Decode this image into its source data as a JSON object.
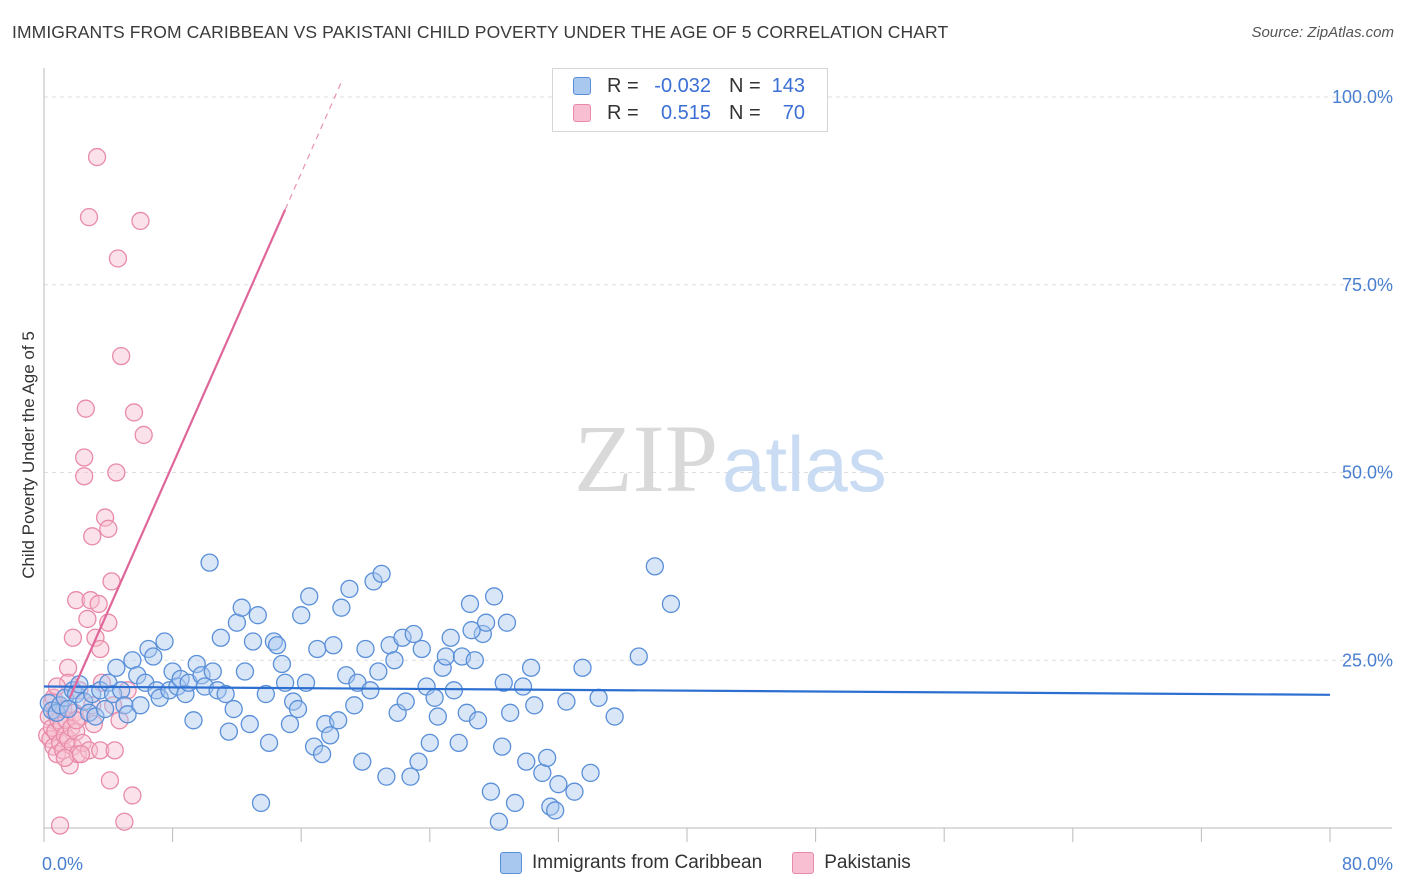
{
  "header": {
    "title": "IMMIGRANTS FROM CARIBBEAN VS PAKISTANI CHILD POVERTY UNDER THE AGE OF 5 CORRELATION CHART",
    "source": "Source: ZipAtlas.com"
  },
  "legend": {
    "series": [
      {
        "r_label": "R =",
        "r_value": "-0.032",
        "n_label": "N =",
        "n_value": "143"
      },
      {
        "r_label": "R =",
        "r_value": "0.515",
        "n_label": "N =",
        "n_value": "70"
      }
    ]
  },
  "bottom_legend": {
    "caribbean": "Immigrants from Caribbean",
    "pakistanis": "Pakistanis"
  },
  "colors": {
    "blue_fill": "#a9c8f0",
    "blue_stroke": "#5a8fd8",
    "blue_line": "#2d6fd1",
    "pink_fill": "#f7bfd1",
    "pink_stroke": "#e88aa8",
    "pink_line": "#e0669a",
    "grid": "#dddddd",
    "tick_label": "#4a7fd0"
  },
  "chart_data": {
    "type": "scatter",
    "title": "IMMIGRANTS FROM CARIBBEAN VS PAKISTANI CHILD POVERTY UNDER THE AGE OF 5 CORRELATION CHART",
    "xlabel": "",
    "ylabel": "Child Poverty Under the Age of 5",
    "xlim": [
      0,
      80
    ],
    "ylim": [
      0,
      102
    ],
    "x_tick_labels": [
      {
        "value": 0,
        "label": "0.0%"
      },
      {
        "value": 80,
        "label": "80.0%"
      }
    ],
    "y_tick_labels": [
      {
        "value": 25,
        "label": "25.0%"
      },
      {
        "value": 50,
        "label": "50.0%"
      },
      {
        "value": 75,
        "label": "75.0%"
      },
      {
        "value": 100,
        "label": "100.0%"
      }
    ],
    "watermark": {
      "zip": "ZIP",
      "atlas": "atlas"
    },
    "series": [
      {
        "name": "Immigrants from Caribbean",
        "R": -0.032,
        "N": 143,
        "trend": {
          "x": [
            0,
            80
          ],
          "y": [
            21.5,
            20.4
          ]
        },
        "points": [
          [
            0.3,
            19.3
          ],
          [
            0.5,
            18.3
          ],
          [
            0.8,
            18
          ],
          [
            1,
            19
          ],
          [
            1.3,
            20
          ],
          [
            1.5,
            18.5
          ],
          [
            1.8,
            21
          ],
          [
            2,
            20.5
          ],
          [
            2.2,
            21.8
          ],
          [
            2.5,
            19.5
          ],
          [
            2.8,
            18
          ],
          [
            3,
            20.5
          ],
          [
            3.2,
            17.5
          ],
          [
            3.5,
            21
          ],
          [
            3.8,
            18.5
          ],
          [
            4,
            22
          ],
          [
            4.3,
            20.5
          ],
          [
            4.5,
            24
          ],
          [
            4.8,
            21
          ],
          [
            5,
            19
          ],
          [
            5.2,
            17.8
          ],
          [
            5.5,
            25
          ],
          [
            5.8,
            23
          ],
          [
            6,
            19
          ],
          [
            6.3,
            22
          ],
          [
            6.5,
            26.5
          ],
          [
            6.8,
            25.5
          ],
          [
            7,
            21
          ],
          [
            7.2,
            20
          ],
          [
            7.5,
            27.5
          ],
          [
            7.8,
            21
          ],
          [
            8,
            23.5
          ],
          [
            8.3,
            21.5
          ],
          [
            8.5,
            22.5
          ],
          [
            8.8,
            20.5
          ],
          [
            9,
            22
          ],
          [
            9.3,
            17
          ],
          [
            9.5,
            24.5
          ],
          [
            9.8,
            23
          ],
          [
            10,
            21.5
          ],
          [
            10.3,
            38
          ],
          [
            10.5,
            23.5
          ],
          [
            10.8,
            21
          ],
          [
            11,
            28
          ],
          [
            11.3,
            20.5
          ],
          [
            11.5,
            15.5
          ],
          [
            11.8,
            18.5
          ],
          [
            12,
            30
          ],
          [
            12.3,
            32
          ],
          [
            12.5,
            23.5
          ],
          [
            12.8,
            16.5
          ],
          [
            13,
            27.5
          ],
          [
            13.3,
            31
          ],
          [
            13.5,
            6
          ],
          [
            13.8,
            20.5
          ],
          [
            14,
            14
          ],
          [
            14.3,
            27.5
          ],
          [
            14.5,
            27
          ],
          [
            14.8,
            24.5
          ],
          [
            15,
            22
          ],
          [
            15.3,
            16.5
          ],
          [
            15.5,
            19.5
          ],
          [
            15.8,
            18.5
          ],
          [
            16,
            31
          ],
          [
            16.3,
            22
          ],
          [
            16.5,
            33.5
          ],
          [
            16.8,
            13.5
          ],
          [
            17,
            26.5
          ],
          [
            17.3,
            12.5
          ],
          [
            17.5,
            16.5
          ],
          [
            17.8,
            15
          ],
          [
            18,
            27
          ],
          [
            18.3,
            17
          ],
          [
            18.5,
            32
          ],
          [
            18.8,
            23
          ],
          [
            19,
            34.5
          ],
          [
            19.3,
            19
          ],
          [
            19.5,
            22
          ],
          [
            19.8,
            11.5
          ],
          [
            20,
            26.5
          ],
          [
            20.3,
            21
          ],
          [
            20.5,
            35.5
          ],
          [
            20.8,
            23.5
          ],
          [
            21,
            36.5
          ],
          [
            21.3,
            9.5
          ],
          [
            21.5,
            27
          ],
          [
            21.8,
            25
          ],
          [
            22,
            18
          ],
          [
            22.3,
            28
          ],
          [
            22.5,
            19.5
          ],
          [
            22.8,
            9.5
          ],
          [
            23,
            28.5
          ],
          [
            23.3,
            11.5
          ],
          [
            23.5,
            26.5
          ],
          [
            23.8,
            21.5
          ],
          [
            24,
            14
          ],
          [
            24.3,
            20
          ],
          [
            24.5,
            17.5
          ],
          [
            24.8,
            24
          ],
          [
            25,
            25.5
          ],
          [
            25.3,
            28
          ],
          [
            25.5,
            21
          ],
          [
            25.8,
            14
          ],
          [
            26,
            25.5
          ],
          [
            26.3,
            18
          ],
          [
            26.5,
            32.5
          ],
          [
            26.8,
            25
          ],
          [
            27,
            17
          ],
          [
            27.3,
            28.5
          ],
          [
            27.5,
            30
          ],
          [
            27.8,
            7.5
          ],
          [
            28,
            33.5
          ],
          [
            28.3,
            3.5
          ],
          [
            28.5,
            13.5
          ],
          [
            28.8,
            30
          ],
          [
            29,
            18
          ],
          [
            29.3,
            6
          ],
          [
            29.8,
            21.5
          ],
          [
            30,
            11.5
          ],
          [
            30.3,
            24
          ],
          [
            30.5,
            19
          ],
          [
            31,
            10
          ],
          [
            31.3,
            12
          ],
          [
            31.5,
            5.5
          ],
          [
            31.8,
            5
          ],
          [
            32,
            8.5
          ],
          [
            32.5,
            19.5
          ],
          [
            33,
            7.5
          ],
          [
            33.5,
            24
          ],
          [
            34.5,
            20
          ],
          [
            35.5,
            17.5
          ],
          [
            37,
            25.5
          ],
          [
            38,
            37.5
          ],
          [
            39,
            32.5
          ],
          [
            34,
            10
          ],
          [
            28.6,
            22
          ],
          [
            26.6,
            29
          ]
        ]
      },
      {
        "name": "Pakistanis",
        "R": 0.515,
        "N": 70,
        "trend": {
          "x": [
            1.6,
            15
          ],
          "y": [
            20,
            85
          ]
        },
        "trend_dashed": {
          "x": [
            15,
            18.5
          ],
          "y": [
            85,
            102
          ]
        },
        "points": [
          [
            0.2,
            15
          ],
          [
            0.3,
            17.5
          ],
          [
            0.4,
            14.5
          ],
          [
            0.5,
            19.5
          ],
          [
            0.5,
            16
          ],
          [
            0.6,
            13.5
          ],
          [
            0.7,
            18
          ],
          [
            0.7,
            15.5
          ],
          [
            0.8,
            12.5
          ],
          [
            0.9,
            17
          ],
          [
            1,
            14
          ],
          [
            1,
            19
          ],
          [
            1.1,
            16.5
          ],
          [
            1.2,
            13
          ],
          [
            1.2,
            18.5
          ],
          [
            1.3,
            15
          ],
          [
            1.4,
            17
          ],
          [
            1.5,
            14.5
          ],
          [
            1.5,
            24
          ],
          [
            1.6,
            11
          ],
          [
            1.7,
            16
          ],
          [
            1.8,
            13.5
          ],
          [
            1.8,
            28
          ],
          [
            1.9,
            18
          ],
          [
            2,
            15.5
          ],
          [
            2,
            33
          ],
          [
            2.1,
            12.5
          ],
          [
            2.2,
            21
          ],
          [
            2.3,
            17.5
          ],
          [
            2.4,
            14
          ],
          [
            2.5,
            49.5
          ],
          [
            2.5,
            52
          ],
          [
            2.6,
            58.5
          ],
          [
            2.7,
            30.5
          ],
          [
            2.8,
            13
          ],
          [
            2.8,
            84
          ],
          [
            2.9,
            33
          ],
          [
            3,
            41.5
          ],
          [
            3,
            19
          ],
          [
            3.1,
            16.5
          ],
          [
            3.2,
            28
          ],
          [
            3.3,
            92
          ],
          [
            3.4,
            32.5
          ],
          [
            3.5,
            13
          ],
          [
            3.6,
            22
          ],
          [
            3.8,
            44
          ],
          [
            4,
            42.5
          ],
          [
            4,
            30
          ],
          [
            4.1,
            9
          ],
          [
            4.2,
            35.5
          ],
          [
            4.3,
            19
          ],
          [
            4.4,
            13
          ],
          [
            4.5,
            50
          ],
          [
            4.6,
            78.5
          ],
          [
            4.7,
            17
          ],
          [
            4.8,
            65.5
          ],
          [
            5,
            3.5
          ],
          [
            5.2,
            21
          ],
          [
            5.5,
            7
          ],
          [
            5.6,
            58
          ],
          [
            6,
            83.5
          ],
          [
            6.2,
            55
          ],
          [
            1,
            3
          ],
          [
            1.5,
            22
          ],
          [
            2,
            17
          ],
          [
            0.6,
            20
          ],
          [
            1.3,
            12
          ],
          [
            0.8,
            21.5
          ],
          [
            2.3,
            12.5
          ],
          [
            3.5,
            26.5
          ]
        ]
      }
    ]
  }
}
